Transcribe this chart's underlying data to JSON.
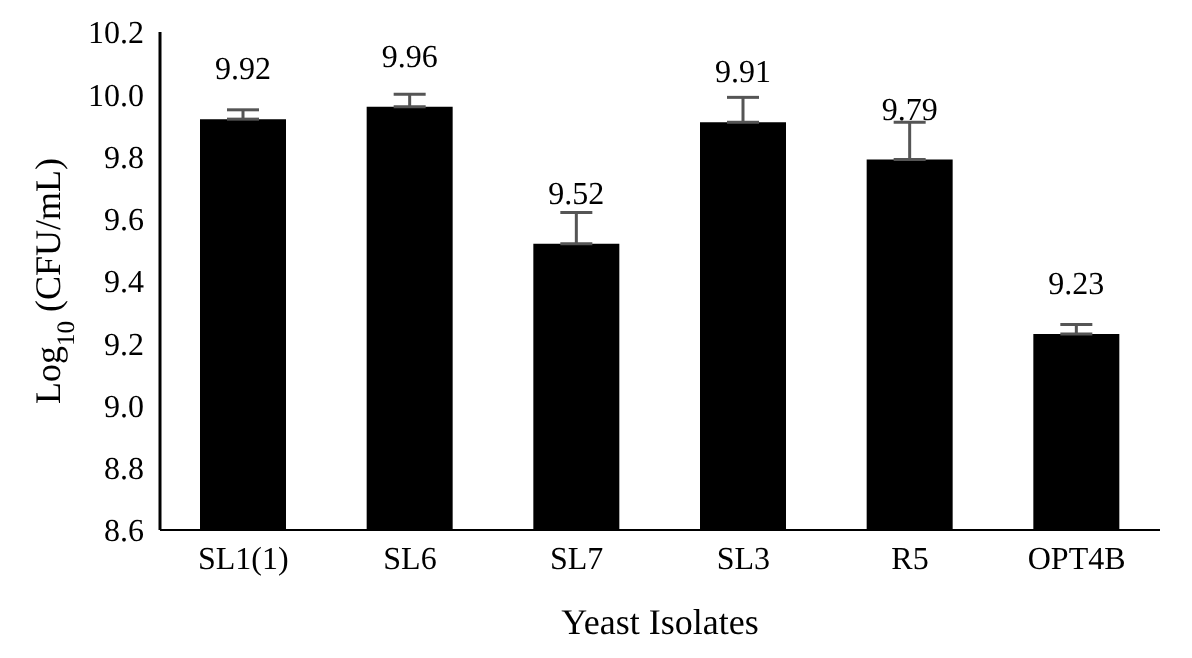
{
  "chart_data": {
    "type": "bar",
    "xlabel": "Yeast Isolates",
    "ylabel": "Log$_{10}$ (CFU/mL)",
    "categories": [
      "SL1(1)",
      "SL6",
      "SL7",
      "SL3",
      "R5",
      "OPT4B"
    ],
    "values": [
      9.92,
      9.96,
      9.52,
      9.91,
      9.79,
      9.23
    ],
    "errors": [
      [
        9.92,
        9.95
      ],
      [
        9.96,
        10.0
      ],
      [
        9.52,
        9.62
      ],
      [
        9.91,
        9.99
      ],
      [
        9.79,
        9.91
      ],
      [
        9.23,
        9.26
      ]
    ],
    "color": "#000000",
    "data_labels": true,
    "grid": false,
    "legend": false,
    "ylim": [
      8.6,
      10.2
    ],
    "yticks": [
      8.6,
      8.8,
      {
        "value": 9,
        "label": "9.0"
      },
      9.2,
      9.4,
      9.6,
      9.8,
      {
        "value": 10,
        "label": "10.0"
      },
      10.2
    ]
  }
}
